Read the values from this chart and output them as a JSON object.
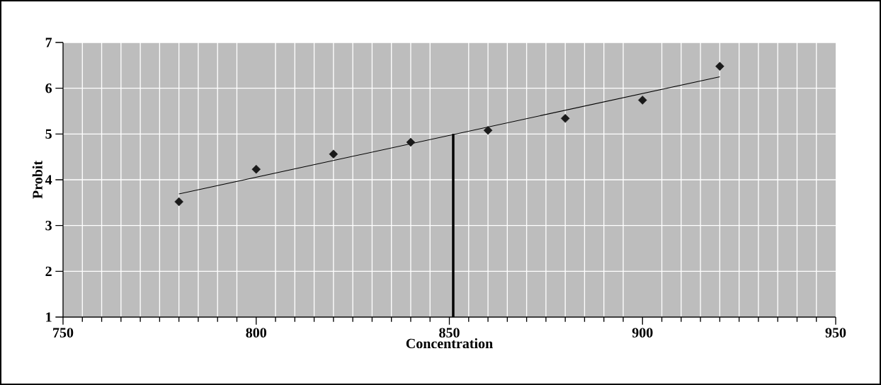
{
  "chart_data": {
    "type": "scatter",
    "xlabel": "Concentration",
    "ylabel": "Probit",
    "xlim": [
      750,
      950
    ],
    "xticks": [
      750,
      800,
      850,
      900,
      950
    ],
    "ylim": [
      1,
      7
    ],
    "yticks": [
      1,
      2,
      3,
      4,
      5,
      6,
      7
    ],
    "grid": true,
    "series": [
      {
        "marker": "diamond",
        "color": "#1a1a1a",
        "x": [
          780,
          800,
          820,
          840,
          860,
          880,
          900,
          920
        ],
        "values": [
          3.52,
          4.23,
          4.56,
          4.82,
          5.08,
          5.34,
          5.74,
          6.48
        ]
      },
      {
        "type": "line",
        "marker": "none",
        "color": "#000000",
        "x": [
          780,
          920
        ],
        "values": [
          3.69,
          6.25
        ]
      },
      {
        "type": "line",
        "marker": "none",
        "color": "#000000",
        "x": [
          851,
          851
        ],
        "values": [
          1,
          5
        ]
      }
    ]
  }
}
